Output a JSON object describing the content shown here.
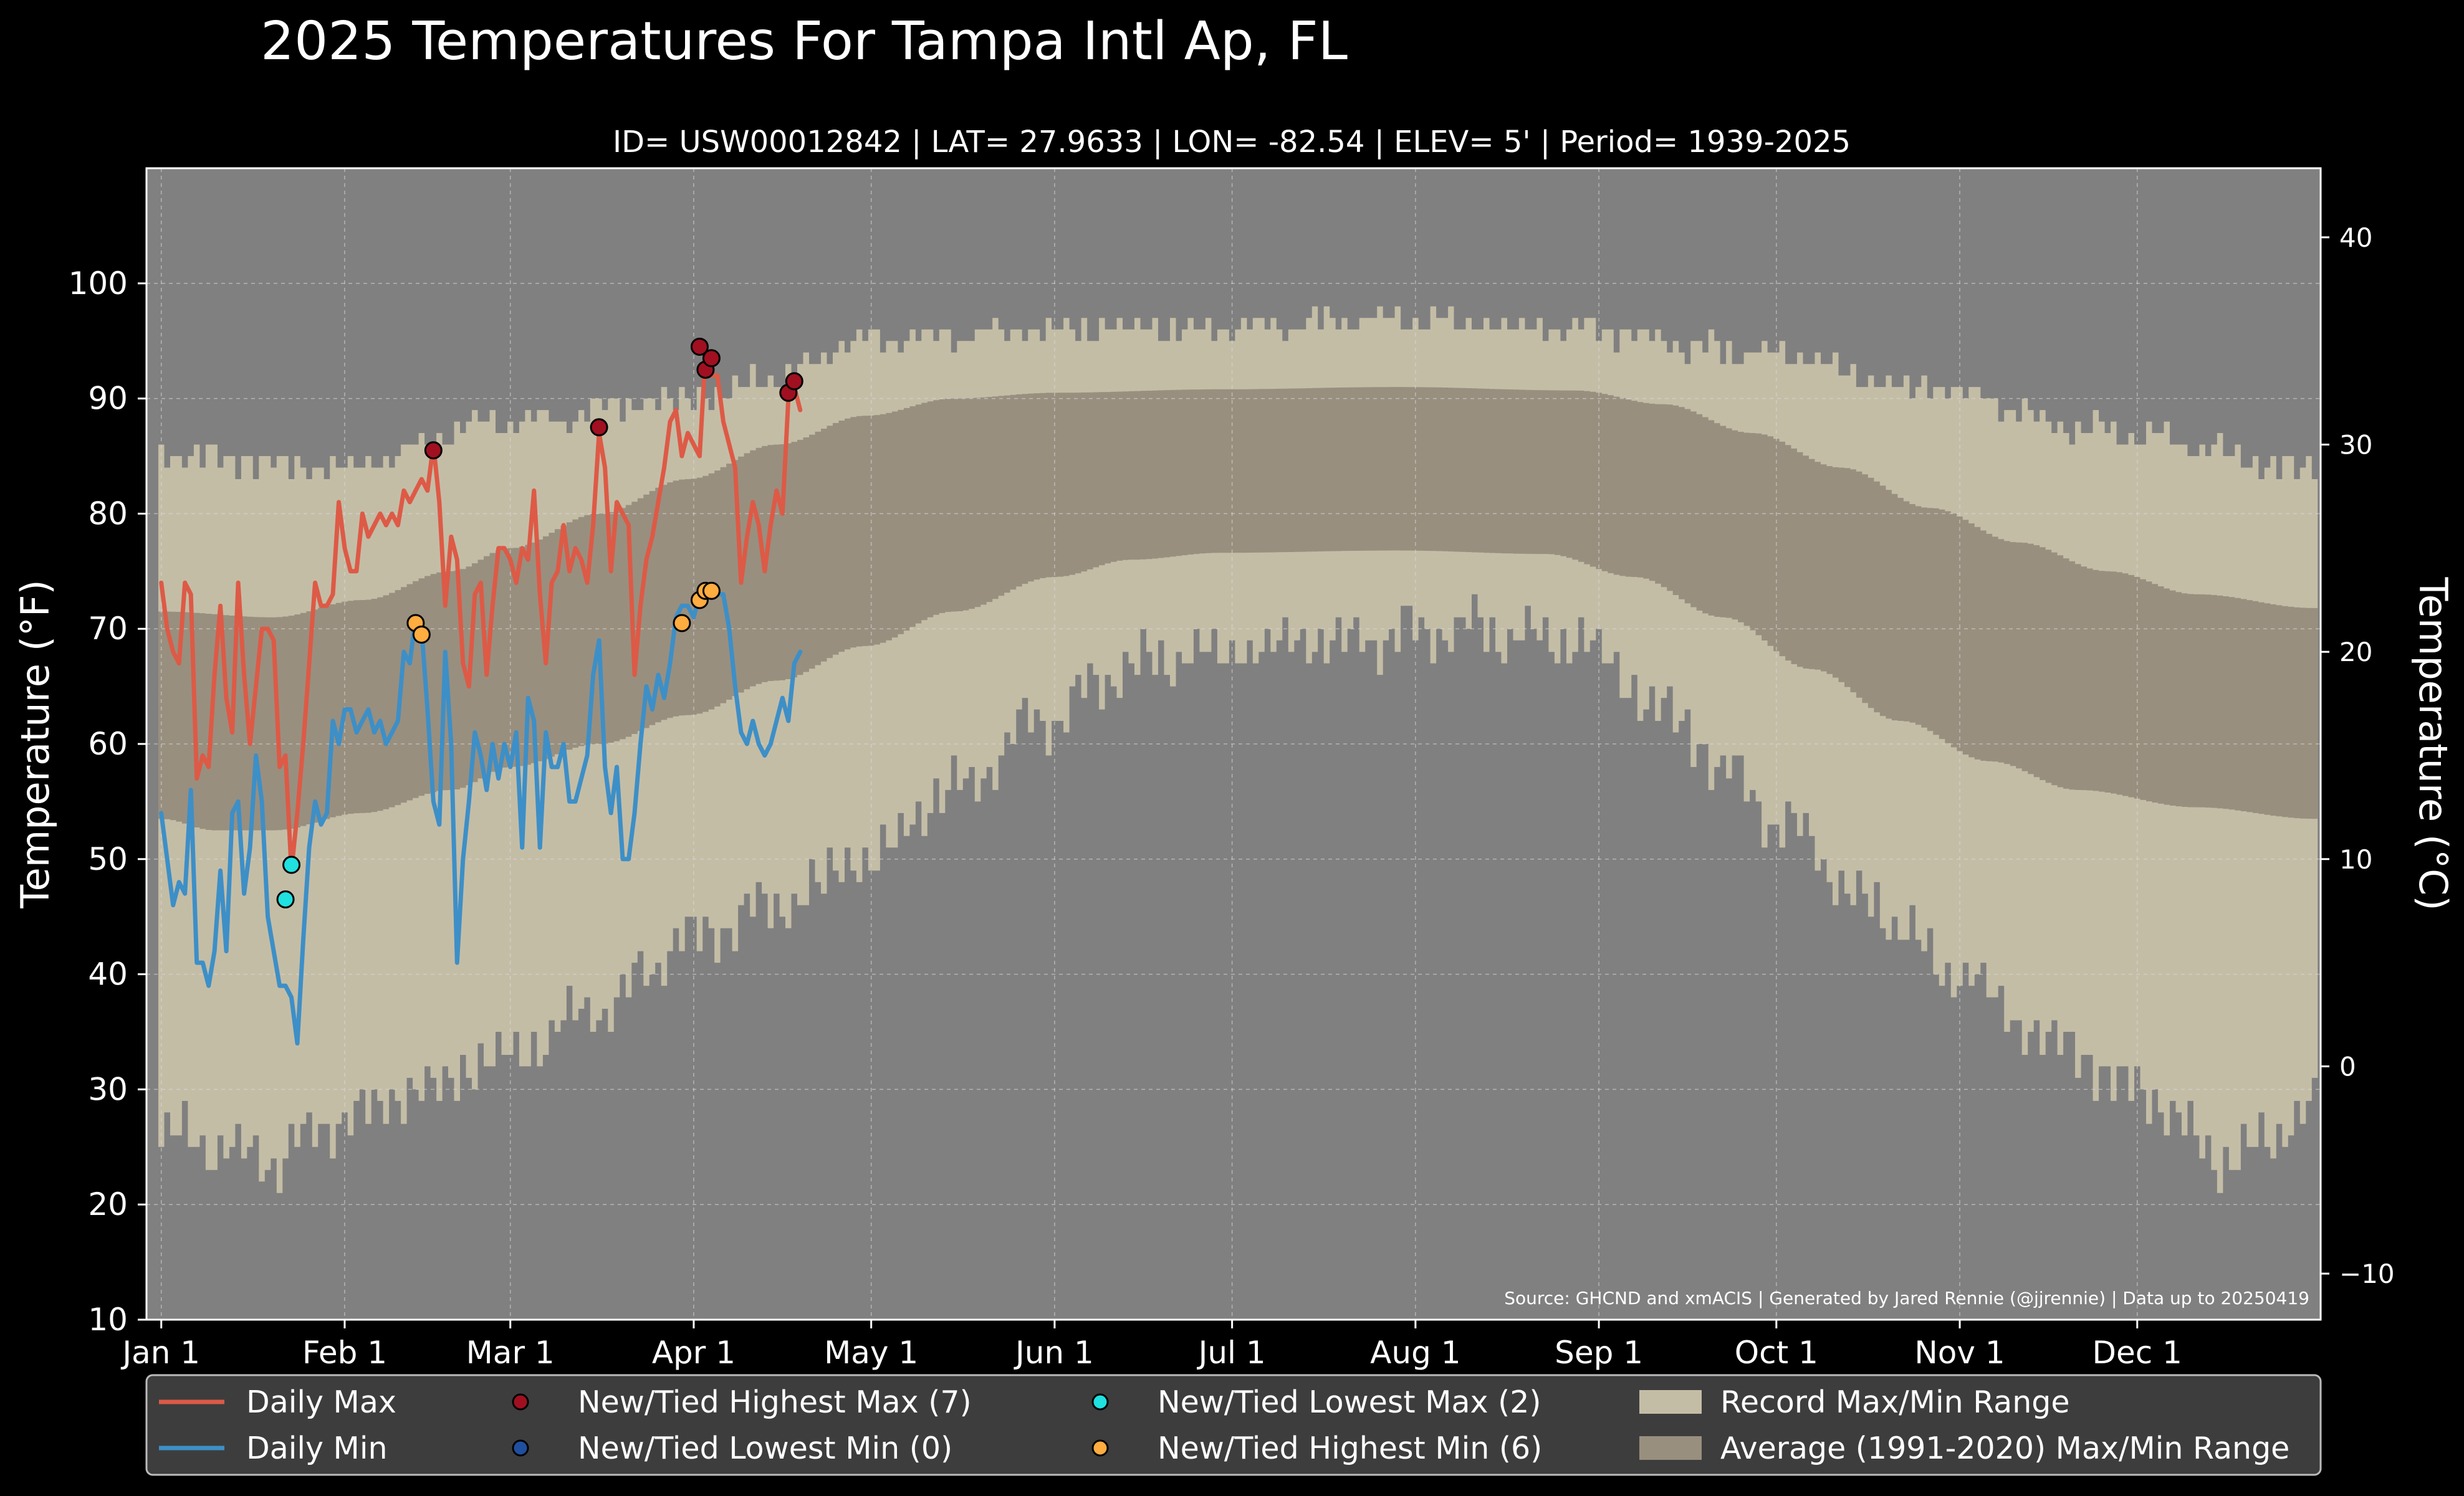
{
  "chart_data": {
    "type": "line",
    "title": "2025 Temperatures For Tampa Intl Ap, FL",
    "subtitle": "ID= USW00012842 | LAT= 27.9633 | LON= -82.54 | ELEV= 5' | Period= 1939-2025",
    "ylabel": "Temperature ($^\\circ$F)",
    "ylabel_right": "Temperature ($^\\circ$C)",
    "ylim": [
      10,
      110
    ],
    "xlim_day": [
      -1.5,
      366
    ],
    "y_ticks": [
      10,
      20,
      30,
      40,
      50,
      60,
      70,
      80,
      90,
      100
    ],
    "y_ticks_right_c": [
      -10,
      0,
      10,
      20,
      30,
      40
    ],
    "x_ticks": [
      {
        "day": 1,
        "label": "Jan 1"
      },
      {
        "day": 32,
        "label": "Feb 1"
      },
      {
        "day": 60,
        "label": "Mar 1"
      },
      {
        "day": 91,
        "label": "Apr 1"
      },
      {
        "day": 121,
        "label": "May 1"
      },
      {
        "day": 152,
        "label": "Jun 1"
      },
      {
        "day": 182,
        "label": "Jul 1"
      },
      {
        "day": 213,
        "label": "Aug 1"
      },
      {
        "day": 244,
        "label": "Sep 1"
      },
      {
        "day": 274,
        "label": "Oct 1"
      },
      {
        "day": 305,
        "label": "Nov 1"
      },
      {
        "day": 335,
        "label": "Dec 1"
      }
    ],
    "grid": true,
    "legend_position": "bottom",
    "source": "Source: GHCND and xmACIS | Generated by Jared Rennie (@jjrennie) | Data up to 20250419",
    "colors": {
      "background": "#000000",
      "plot_background": "#808080",
      "record_range": "#c4bda6",
      "normal_range": "#998f7f",
      "daily_max": "#dd5a46",
      "daily_min": "#3d8fc7",
      "new_high_max": "#a01020",
      "new_low_min": "#1f4f9f",
      "new_low_max": "#20e0e0",
      "new_high_min": "#ffac40"
    },
    "record_max_anchors": [
      [
        1,
        85
      ],
      [
        30,
        84
      ],
      [
        60,
        88
      ],
      [
        90,
        90
      ],
      [
        105,
        92
      ],
      [
        120,
        95
      ],
      [
        150,
        96
      ],
      [
        180,
        96
      ],
      [
        210,
        97
      ],
      [
        240,
        96
      ],
      [
        270,
        94
      ],
      [
        300,
        91
      ],
      [
        330,
        87
      ],
      [
        365,
        84
      ]
    ],
    "record_min_anchors": [
      [
        1,
        26
      ],
      [
        20,
        24
      ],
      [
        30,
        27
      ],
      [
        45,
        30
      ],
      [
        60,
        33
      ],
      [
        75,
        37
      ],
      [
        90,
        43
      ],
      [
        105,
        46
      ],
      [
        120,
        50
      ],
      [
        135,
        56
      ],
      [
        150,
        62
      ],
      [
        165,
        67
      ],
      [
        180,
        68
      ],
      [
        200,
        69
      ],
      [
        220,
        70
      ],
      [
        240,
        69
      ],
      [
        255,
        63
      ],
      [
        265,
        58
      ],
      [
        275,
        53
      ],
      [
        290,
        46
      ],
      [
        305,
        40
      ],
      [
        320,
        34
      ],
      [
        335,
        30
      ],
      [
        350,
        24
      ],
      [
        365,
        28
      ]
    ],
    "normal_max_anchors": [
      [
        1,
        71.5
      ],
      [
        20,
        71
      ],
      [
        35,
        72.5
      ],
      [
        50,
        75
      ],
      [
        60,
        77
      ],
      [
        75,
        80
      ],
      [
        90,
        83
      ],
      [
        105,
        86
      ],
      [
        120,
        88.5
      ],
      [
        135,
        90
      ],
      [
        152,
        90.5
      ],
      [
        180,
        90.8
      ],
      [
        210,
        91
      ],
      [
        240,
        90.7
      ],
      [
        255,
        89.5
      ],
      [
        270,
        87
      ],
      [
        285,
        84
      ],
      [
        300,
        80.5
      ],
      [
        315,
        77.5
      ],
      [
        330,
        75
      ],
      [
        345,
        73
      ],
      [
        365,
        71.8
      ]
    ],
    "normal_min_anchors": [
      [
        1,
        53.5
      ],
      [
        10,
        52.5
      ],
      [
        20,
        52.5
      ],
      [
        35,
        54
      ],
      [
        50,
        56
      ],
      [
        60,
        58
      ],
      [
        75,
        60
      ],
      [
        90,
        62.5
      ],
      [
        105,
        65.5
      ],
      [
        120,
        68.5
      ],
      [
        135,
        71.5
      ],
      [
        152,
        74.5
      ],
      [
        165,
        76
      ],
      [
        180,
        76.6
      ],
      [
        210,
        76.8
      ],
      [
        235,
        76.5
      ],
      [
        250,
        74.5
      ],
      [
        265,
        71
      ],
      [
        280,
        66.5
      ],
      [
        295,
        62
      ],
      [
        310,
        58.5
      ],
      [
        325,
        56
      ],
      [
        345,
        54.5
      ],
      [
        365,
        53.5
      ]
    ],
    "series": [
      {
        "name": "Daily Max",
        "values": [
          74,
          70,
          68,
          67,
          74,
          73,
          57,
          59,
          58,
          66,
          72,
          64,
          61,
          74,
          66,
          60,
          65,
          70,
          70,
          69,
          58,
          59,
          49,
          54,
          60,
          67,
          74,
          72,
          72,
          73,
          81,
          77,
          75,
          75,
          80,
          78,
          79,
          80,
          79,
          80,
          79,
          82,
          81,
          82,
          83,
          82,
          86,
          81,
          72,
          78,
          76,
          67,
          65,
          73,
          74,
          66,
          72,
          77,
          77,
          76,
          74,
          77,
          76,
          82,
          73,
          67,
          74,
          75,
          79,
          75,
          77,
          76,
          74,
          79,
          87,
          84,
          75,
          81,
          80,
          79,
          66,
          72,
          76,
          78,
          81,
          84,
          88,
          89,
          85,
          87,
          86,
          85,
          94,
          92,
          92,
          88,
          86,
          84,
          74,
          78,
          81,
          79,
          75,
          79,
          82,
          80,
          90,
          91,
          89
        ]
      },
      {
        "name": "Daily Min",
        "values": [
          54,
          50,
          46,
          48,
          47,
          56,
          41,
          41,
          39,
          42,
          49,
          42,
          54,
          55,
          47,
          51,
          59,
          55,
          45,
          42,
          39,
          39,
          38,
          34,
          43,
          51,
          55,
          53,
          54,
          62,
          60,
          63,
          63,
          61,
          62,
          63,
          61,
          62,
          60,
          61,
          62,
          68,
          67,
          71,
          70,
          63,
          55,
          53,
          68,
          60,
          41,
          50,
          55,
          61,
          59,
          56,
          60,
          57,
          60,
          58,
          61,
          51,
          64,
          62,
          51,
          61,
          58,
          58,
          60,
          55,
          55,
          57,
          59,
          66,
          69,
          58,
          54,
          58,
          50,
          50,
          54,
          60,
          65,
          63,
          66,
          64,
          67,
          71,
          72,
          72,
          71,
          73,
          73,
          73,
          73,
          73,
          70,
          65,
          61,
          60,
          62,
          60,
          59,
          60,
          62,
          64,
          62,
          67,
          68
        ]
      }
    ],
    "record_points": [
      {
        "type": "New/Tied Highest Max",
        "day": 47,
        "value": 85.5
      },
      {
        "type": "New/Tied Highest Max",
        "day": 75,
        "value": 87.5
      },
      {
        "type": "New/Tied Highest Max",
        "day": 92,
        "value": 94.5
      },
      {
        "type": "New/Tied Highest Max",
        "day": 93,
        "value": 92.5
      },
      {
        "type": "New/Tied Highest Max",
        "day": 94,
        "value": 93.5
      },
      {
        "type": "New/Tied Highest Max",
        "day": 107,
        "value": 90.5
      },
      {
        "type": "New/Tied Highest Max",
        "day": 108,
        "value": 91.5
      },
      {
        "type": "New/Tied Lowest Max",
        "day": 22,
        "value": 46.5
      },
      {
        "type": "New/Tied Lowest Max",
        "day": 23,
        "value": 49.5
      },
      {
        "type": "New/Tied Highest Min",
        "day": 44,
        "value": 70.5
      },
      {
        "type": "New/Tied Highest Min",
        "day": 45,
        "value": 69.5
      },
      {
        "type": "New/Tied Highest Min",
        "day": 89,
        "value": 70.5
      },
      {
        "type": "New/Tied Highest Min",
        "day": 92,
        "value": 72.5
      },
      {
        "type": "New/Tied Highest Min",
        "day": 93,
        "value": 73.3
      },
      {
        "type": "New/Tied Highest Min",
        "day": 94,
        "value": 73.3
      }
    ],
    "legend": [
      {
        "key": "daily_max",
        "kind": "line",
        "label": "Daily Max"
      },
      {
        "key": "daily_min",
        "kind": "line",
        "label": "Daily Min"
      },
      {
        "key": "new_high_max",
        "kind": "marker",
        "label": "New/Tied Highest Max (7)"
      },
      {
        "key": "new_low_min",
        "kind": "marker",
        "label": "New/Tied Lowest Min (0)"
      },
      {
        "key": "new_low_max",
        "kind": "marker",
        "label": "New/Tied Lowest Max (2)"
      },
      {
        "key": "new_high_min",
        "kind": "marker",
        "label": "New/Tied Highest Min (6)"
      },
      {
        "key": "record_range",
        "kind": "patch",
        "label": "Record Max/Min Range"
      },
      {
        "key": "normal_range",
        "kind": "patch",
        "label": "Average (1991-2020) Max/Min Range"
      }
    ]
  }
}
